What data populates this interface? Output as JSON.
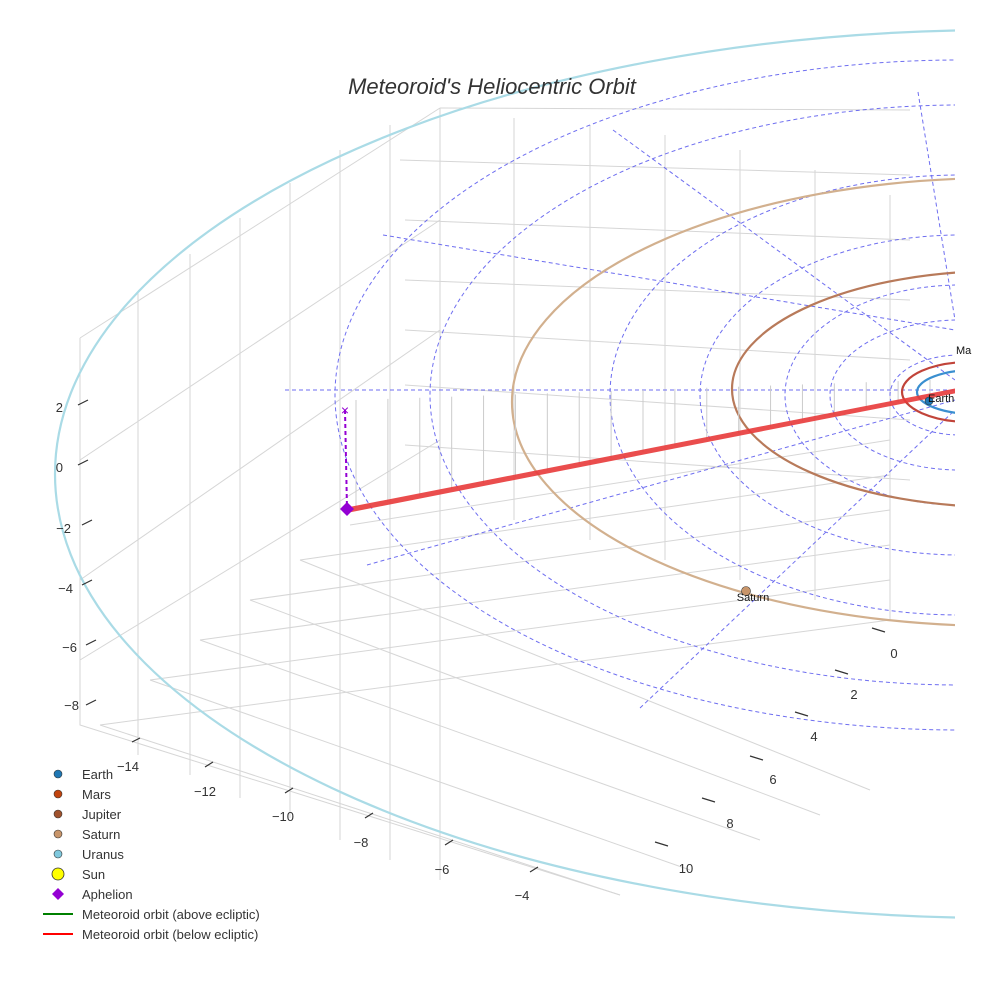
{
  "chart_data": {
    "type": "scatter3d",
    "title": "Meteoroid's Heliocentric Orbit",
    "axes": {
      "x": {
        "ticks": [
          -14,
          -12,
          -10,
          -8,
          -6,
          -4
        ],
        "labels": [
          "−14",
          "−12",
          "−10",
          "−8",
          "−6",
          "−4"
        ]
      },
      "y": {
        "ticks": [
          0,
          2,
          4,
          6,
          8,
          10
        ],
        "labels": [
          "0",
          "2",
          "4",
          "6",
          "8",
          "10"
        ]
      },
      "z": {
        "ticks": [
          2,
          0,
          -2,
          -4,
          -6,
          -8
        ],
        "labels": [
          "2",
          "0",
          "−2",
          "−4",
          "−6",
          "−8"
        ]
      }
    },
    "grid": true,
    "legend_position": "bottom-left",
    "planet_labels": {
      "earth": "Earth",
      "mars": "Ma",
      "saturn": "Saturn"
    },
    "aphelion": {
      "x": -13.6,
      "y": 5.2,
      "z": -1.4
    },
    "legend": [
      {
        "name": "Earth",
        "symbol": "circle",
        "color": "#1f77b4"
      },
      {
        "name": "Mars",
        "symbol": "circle",
        "color": "#c1440e"
      },
      {
        "name": "Jupiter",
        "symbol": "circle",
        "color": "#a0522d"
      },
      {
        "name": "Saturn",
        "symbol": "circle",
        "color": "#c8956a"
      },
      {
        "name": "Uranus",
        "symbol": "circle",
        "color": "#7fc8dd"
      },
      {
        "name": "Sun",
        "symbol": "circle-large",
        "color": "#ffff00"
      },
      {
        "name": "Aphelion",
        "symbol": "diamond",
        "color": "#9400d3"
      },
      {
        "name": "Meteoroid orbit (above ecliptic)",
        "symbol": "line",
        "color": "#008000"
      },
      {
        "name": "Meteoroid orbit (below ecliptic)",
        "symbol": "line",
        "color": "#ff0000"
      }
    ]
  },
  "colors": {
    "earth_orbit": "#3a8fd0",
    "mars_orbit": "#c1443a",
    "jupiter_orbit": "#b87a5a",
    "saturn_orbit": "#d2b08e",
    "uranus_orbit": "#aadbe6",
    "meteoroid": "#e83a3a",
    "guide": "#5555ee",
    "grid": "#d6d6d6"
  }
}
